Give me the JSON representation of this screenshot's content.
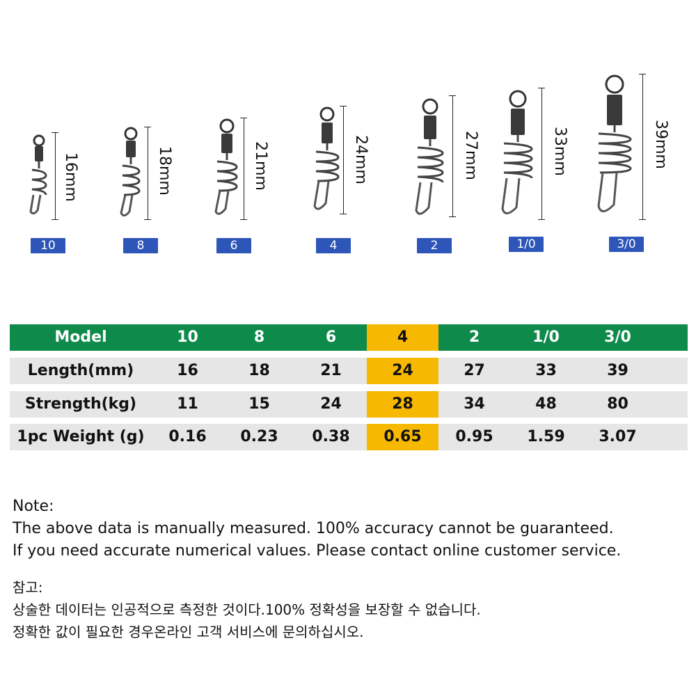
{
  "products": [
    {
      "length": "16mm",
      "model": "10"
    },
    {
      "length": "18mm",
      "model": "8"
    },
    {
      "length": "21mm",
      "model": "6"
    },
    {
      "length": "24mm",
      "model": "4"
    },
    {
      "length": "27mm",
      "model": "2"
    },
    {
      "length": "33mm",
      "model": "1/0"
    },
    {
      "length": "39mm",
      "model": "3/0"
    }
  ],
  "table": {
    "header": [
      "Model",
      "10",
      "8",
      "6",
      "4",
      "2",
      "1/0",
      "3/0"
    ],
    "rows": [
      {
        "label": "Length(mm)",
        "values": [
          "16",
          "18",
          "21",
          "24",
          "27",
          "33",
          "39"
        ]
      },
      {
        "label": "Strength(kg)",
        "values": [
          "11",
          "15",
          "24",
          "28",
          "34",
          "48",
          "80"
        ]
      },
      {
        "label": "1pc Weight (g)",
        "values": [
          "0.16",
          "0.23",
          "0.38",
          "0.65",
          "0.95",
          "1.59",
          "3.07"
        ]
      }
    ],
    "highlight_color": "#f6b800",
    "header_color": "#0e8a4a",
    "row_color": "#e6e6e6"
  },
  "notes": {
    "en_title": "Note:",
    "en_line1": "The above data is manually measured. 100% accuracy cannot be guaranteed.",
    "en_line2": "If you need accurate numerical values. Please contact online customer service.",
    "ko_title": "참고:",
    "ko_line1": "상술한 데이터는 인공적으로 측정한 것이다.100% 정확성을 보장할 수 없습니다.",
    "ko_line2": "정확한 값이 필요한 경우온라인 고객 서비스에 문의하십시오."
  },
  "badge_color": "#2d56b8"
}
